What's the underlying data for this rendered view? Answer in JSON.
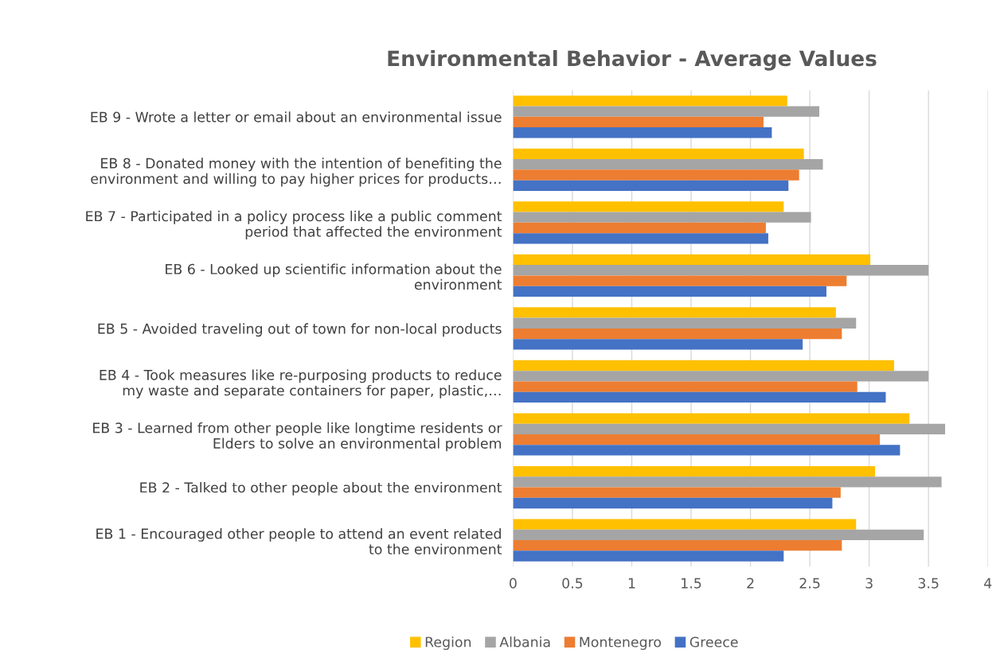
{
  "chart_data": {
    "type": "bar",
    "orientation": "horizontal",
    "title": "Environmental Behavior - Average Values",
    "categories": [
      "EB 9 - Wrote a letter or email about an environmental issue",
      "EB 8 - Donated money with the intention of benefiting the\nenvironment and willing to pay higher prices for products…",
      "EB 7 - Participated in a policy process like a public comment\nperiod that affected the environment",
      "EB 6 - Looked up scientific information about the\nenvironment",
      "EB 5 - Avoided traveling out of town for non-local products",
      "EB 4 - Took measures like re-purposing products to reduce\nmy waste and separate containers for paper, plastic,…",
      "EB 3 - Learned from other people like longtime residents or\nElders to solve an environmental problem",
      "EB 2 - Talked to other people about the environment",
      "EB 1 - Encouraged other people to attend an event related\nto the environment"
    ],
    "series": [
      {
        "name": "Region",
        "color": "#ffc000",
        "values": [
          2.31,
          2.45,
          2.28,
          3.01,
          2.72,
          3.21,
          3.34,
          3.05,
          2.89
        ]
      },
      {
        "name": "Albania",
        "color": "#a5a5a5",
        "values": [
          2.58,
          2.61,
          2.51,
          3.5,
          2.89,
          3.5,
          3.64,
          3.61,
          3.46
        ]
      },
      {
        "name": "Montenegro",
        "color": "#ed7d31",
        "values": [
          2.11,
          2.41,
          2.13,
          2.81,
          2.77,
          2.9,
          3.09,
          2.76,
          2.77
        ]
      },
      {
        "name": "Greece",
        "color": "#4472c4",
        "values": [
          2.18,
          2.32,
          2.15,
          2.64,
          2.44,
          3.14,
          3.26,
          2.69,
          2.28
        ]
      }
    ],
    "xlim": [
      0,
      4
    ],
    "xticks": [
      0,
      0.5,
      1,
      1.5,
      2,
      2.5,
      3,
      3.5,
      4
    ],
    "grid": "x",
    "legend": "bottom"
  }
}
